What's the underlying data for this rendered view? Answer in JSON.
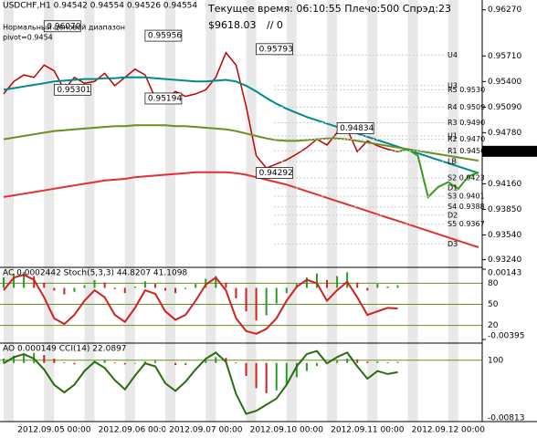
{
  "chart_data": [
    {
      "type": "line",
      "title": "USDCHF,H1  0.94542 0.94554 0.94526 0.94554",
      "subtitle": "Текущее время: 06:10:55 Плечо:500 Спрэд:23",
      "balance": "$9618.03",
      "orders": "// 0",
      "range_note": "Нормальный ценовой диапазон",
      "pivot_note": "pivot=0.9454",
      "current_price": {
        "value": 0.94554,
        "label": "0.94554"
      },
      "categories": [
        null,
        null,
        null,
        null,
        null,
        "2012.09.05 00:00",
        null,
        null,
        null,
        null,
        null,
        null,
        null,
        "2012.09.06 00:00",
        null,
        null,
        null,
        null,
        null,
        null,
        "2012.09.07 00:00",
        null,
        null,
        null,
        null,
        null,
        null,
        null,
        "2012.09.10 00:00",
        null,
        null,
        null,
        null,
        null,
        null,
        null,
        "2012.09.11 00:00",
        null,
        null,
        null,
        null,
        null,
        null,
        null,
        "2012.09.12 00:00",
        null,
        null,
        null
      ],
      "series": [
        {
          "color": "#c00000",
          "values": [
            0.9525,
            0.954,
            0.9548,
            0.9545,
            0.956,
            0.9553,
            0.953,
            0.9545,
            0.9538,
            0.954,
            0.955,
            0.9535,
            0.9545,
            0.9555,
            0.9548,
            0.952,
            0.9518,
            0.9528,
            0.9522,
            0.9525,
            0.953,
            0.9545,
            0.9575,
            0.956,
            0.951,
            0.945,
            0.9435,
            0.944,
            0.9445,
            0.9452,
            0.946,
            0.947,
            0.9463,
            0.9478,
            0.9482,
            0.9455,
            0.9468,
            0.9462,
            0.9458,
            0.9455,
            null,
            null,
            null,
            null,
            null,
            null,
            null,
            null
          ]
        },
        {
          "color": "#008b8b",
          "values": [
            0.953,
            0.9532,
            0.9534,
            0.9536,
            0.9538,
            0.954,
            0.9541,
            0.9542,
            0.9543,
            0.9543,
            0.9544,
            0.9544,
            0.9545,
            0.9545,
            0.9545,
            0.9544,
            0.9543,
            0.9542,
            0.9541,
            0.954,
            0.954,
            0.9541,
            0.9542,
            0.954,
            0.9535,
            0.9528,
            0.952,
            0.9513,
            0.9507,
            0.9502,
            0.9497,
            0.9493,
            0.9489,
            0.9485,
            0.9481,
            0.9477,
            0.9473,
            0.9469,
            0.9465,
            0.9461,
            0.9457,
            0.9453,
            0.9449,
            0.9445,
            0.9441,
            0.9437,
            0.9433,
            0.9429
          ]
        },
        {
          "color": "#6b8e23",
          "values": [
            0.947,
            0.9472,
            0.9474,
            0.9476,
            0.9478,
            0.948,
            0.9481,
            0.9482,
            0.9483,
            0.9484,
            0.9485,
            0.9486,
            0.9486,
            0.9487,
            0.9487,
            0.9487,
            0.9487,
            0.9486,
            0.9486,
            0.9485,
            0.9484,
            0.9483,
            0.9482,
            0.948,
            0.9477,
            0.9474,
            0.9471,
            0.9469,
            0.9468,
            0.9468,
            0.9469,
            0.947,
            0.9471,
            0.9471,
            0.947,
            0.9468,
            0.9466,
            0.9464,
            0.9462,
            0.946,
            0.9458,
            0.9456,
            0.9454,
            0.9452,
            0.945,
            0.9448,
            0.9446,
            0.9444
          ]
        },
        {
          "color": "#e03030",
          "values": [
            0.94,
            0.9402,
            0.9404,
            0.9406,
            0.9408,
            0.941,
            0.9412,
            0.9414,
            0.9416,
            0.9418,
            0.942,
            0.9421,
            0.9422,
            0.9424,
            0.9425,
            0.9426,
            0.9427,
            0.9428,
            0.9429,
            0.943,
            0.943,
            0.943,
            0.943,
            0.9429,
            0.9427,
            0.9424,
            0.9421,
            0.9418,
            0.9415,
            0.9411,
            0.9407,
            0.9403,
            0.9399,
            0.9395,
            0.9391,
            0.9387,
            0.9383,
            0.9379,
            0.9375,
            0.9371,
            0.9367,
            0.9363,
            0.9359,
            0.9355,
            0.9351,
            0.9347,
            0.9343,
            0.9339
          ]
        },
        {
          "color": "#3a9a1a",
          "values": [
            null,
            null,
            null,
            null,
            null,
            null,
            null,
            null,
            null,
            null,
            null,
            null,
            null,
            null,
            null,
            null,
            null,
            null,
            null,
            null,
            null,
            null,
            null,
            null,
            null,
            null,
            null,
            null,
            null,
            null,
            null,
            null,
            null,
            null,
            null,
            null,
            null,
            null,
            null,
            0.9455,
            0.9458,
            0.945,
            0.94,
            0.9412,
            0.9418,
            0.941,
            0.9425,
            0.943
          ]
        }
      ],
      "boxes": [
        {
          "label": "0.96070",
          "value": 0.9607,
          "index": 4
        },
        {
          "label": "0.95956",
          "value": 0.95956,
          "index": 14
        },
        {
          "label": "0.95793",
          "value": 0.95793,
          "index": 25
        },
        {
          "label": "0.95301",
          "value": 0.95301,
          "index": 5
        },
        {
          "label": "0.95194",
          "value": 0.95194,
          "index": 14
        },
        {
          "label": "0.94834",
          "value": 0.94834,
          "index": 33
        },
        {
          "label": "0.94292",
          "value": 0.94292,
          "index": 25
        }
      ],
      "levels": [
        {
          "label": "U4",
          "value": 0.9572
        },
        {
          "label": "U3",
          "value": 0.9535
        },
        {
          "label": "R5 0.9530",
          "value": 0.953
        },
        {
          "label": "R4 0.9509",
          "value": 0.9509
        },
        {
          "label": "R3 0.9490",
          "value": 0.949
        },
        {
          "label": "U1",
          "value": 0.9474
        },
        {
          "label": "R2 0.9470",
          "value": 0.947
        },
        {
          "label": "R1 0.9456",
          "value": 0.9456
        },
        {
          "label": "LB",
          "value": 0.9443
        },
        {
          "label": "S2 0.9423",
          "value": 0.9423
        },
        {
          "label": "D1",
          "value": 0.9411
        },
        {
          "label": "S3 0.9401",
          "value": 0.9401
        },
        {
          "label": "S4 0.9388",
          "value": 0.9388
        },
        {
          "label": "D2",
          "value": 0.9378
        },
        {
          "label": "S5 0.9367",
          "value": 0.9367
        },
        {
          "label": "D3",
          "value": 0.9343
        }
      ],
      "ylim": [
        0.9318,
        0.963
      ],
      "yticks": [
        {
          "value": 0.9627,
          "label": "0.96270"
        },
        {
          "value": 0.9571,
          "label": "0.95710"
        },
        {
          "value": 0.954,
          "label": "0.95400"
        },
        {
          "value": 0.9509,
          "label": "0.95090"
        },
        {
          "value": 0.9478,
          "label": "0.94780"
        },
        {
          "value": 0.9416,
          "label": "0.94160"
        },
        {
          "value": 0.9385,
          "label": "0.93850"
        },
        {
          "value": 0.9354,
          "label": "0.93540"
        },
        {
          "value": 0.9324,
          "label": "0.93240"
        }
      ]
    },
    {
      "type": "bar",
      "title": "AC 0.0002442  Stoch(5,3,3) 44.8207 41.1098",
      "values": [
        0.0008,
        0.0011,
        0.0012,
        0.0009,
        0.0004,
        -0.0002,
        -0.0005,
        -0.0003,
        0.0002,
        0.0006,
        0.0004,
        -0.0001,
        -0.0004,
        0.0001,
        0.0005,
        0.0003,
        -0.0002,
        -0.0004,
        -0.0001,
        0.0003,
        0.0007,
        0.0009,
        0.0004,
        -0.0008,
        -0.0018,
        -0.0025,
        -0.0021,
        -0.0012,
        -0.0004,
        0.0003,
        0.0008,
        0.0011,
        0.0006,
        0.0009,
        0.0012,
        0.0004,
        -0.0002,
        0.0003,
        0.0001,
        0.0002
      ],
      "ylim": [
        -0.00395,
        0.00143
      ],
      "yticks": [
        {
          "value": 0.00143,
          "label": "0.00143"
        },
        {
          "value": -0.00395,
          "label": "-0.00395"
        }
      ],
      "series": [
        {
          "color": "#d02020",
          "axis": "y2",
          "values": [
            70,
            88,
            92,
            85,
            60,
            30,
            22,
            35,
            55,
            70,
            60,
            35,
            25,
            45,
            70,
            65,
            40,
            28,
            35,
            55,
            78,
            88,
            70,
            30,
            12,
            8,
            15,
            30,
            55,
            75,
            85,
            80,
            55,
            70,
            82,
            60,
            35,
            40,
            45,
            44
          ]
        }
      ],
      "y2lim": [
        0,
        100
      ],
      "y2ticks": [
        20,
        50,
        80
      ]
    },
    {
      "type": "bar",
      "title": "AO 0.000149  CCI(14) 22.0897",
      "values": [
        0.0006,
        0.001,
        0.0013,
        0.0014,
        0.0011,
        0.0006,
        0.0001,
        -0.0002,
        0.0,
        0.0003,
        0.0004,
        0.0001,
        -0.0002,
        -0.0001,
        0.0002,
        0.0003,
        0.0,
        -0.0003,
        -0.0003,
        0.0,
        0.0004,
        0.0008,
        0.0007,
        0.0001,
        -0.0018,
        -0.0035,
        -0.0042,
        -0.0038,
        -0.003,
        -0.002,
        -0.0011,
        -0.0004,
        0.0,
        0.0003,
        0.0006,
        0.0005,
        0.0002,
        0.0002,
        0.0001,
        0.00015
      ],
      "ylim": [
        -0.00813,
        0.0025
      ],
      "yticks": [
        {
          "value": -0.00813,
          "label": "-0.00813"
        }
      ],
      "series": [
        {
          "color": "#2a6a10",
          "axis": "y2",
          "values": [
            80,
            120,
            140,
            110,
            40,
            -60,
            -110,
            -60,
            30,
            90,
            50,
            -30,
            -90,
            0,
            80,
            60,
            -50,
            -100,
            -40,
            40,
            110,
            150,
            90,
            -120,
            -250,
            -230,
            -190,
            -150,
            -60,
            60,
            140,
            160,
            80,
            120,
            150,
            60,
            -20,
            30,
            10,
            22
          ]
        }
      ],
      "y2lim": [
        -300,
        200
      ],
      "y2ticks": [
        100
      ]
    }
  ]
}
